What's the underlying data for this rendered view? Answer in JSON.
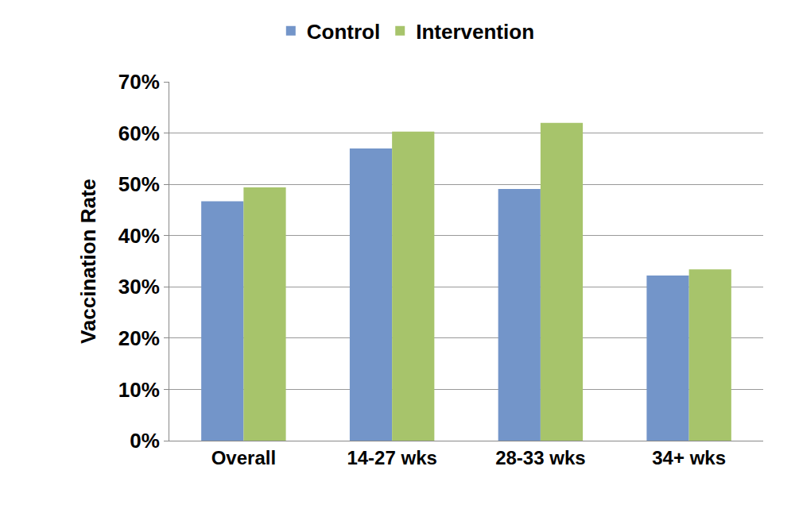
{
  "chart_data": {
    "type": "bar",
    "y_label": "Vaccination Rate",
    "categories": [
      "Overall",
      "14-27 wks",
      "28-33 wks",
      "34+ wks"
    ],
    "series": [
      {
        "name": "Control",
        "color": "#7395c9",
        "values": [
          46.7,
          57.0,
          49.1,
          32.2
        ]
      },
      {
        "name": "Intervention",
        "color": "#a7c46b",
        "values": [
          49.4,
          60.3,
          62.0,
          33.4
        ]
      }
    ],
    "ylim": [
      0,
      70
    ],
    "yticks": [
      {
        "value": 0,
        "label": "0%"
      },
      {
        "value": 10,
        "label": "10%"
      },
      {
        "value": 20,
        "label": "20%"
      },
      {
        "value": 30,
        "label": "30%"
      },
      {
        "value": 40,
        "label": "40%"
      },
      {
        "value": 50,
        "label": "50%"
      },
      {
        "value": 60,
        "label": "60%"
      },
      {
        "value": 70,
        "label": "70%"
      }
    ],
    "grid": true,
    "legend": "top"
  }
}
